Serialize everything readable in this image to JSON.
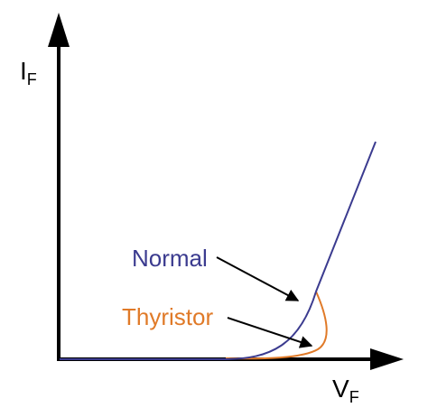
{
  "axes": {
    "y": {
      "label": "I",
      "subscript": "F"
    },
    "x": {
      "label": "V",
      "subscript": "F"
    }
  },
  "curves": [
    {
      "label": "Normal",
      "color": "#3b3b8f"
    },
    {
      "label": "Thyristor",
      "color": "#e07a28"
    }
  ]
}
